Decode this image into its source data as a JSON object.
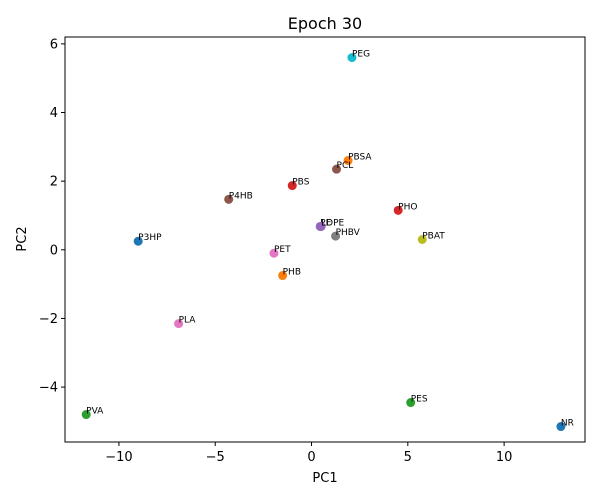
{
  "chart_data": {
    "type": "scatter",
    "title": "Epoch 30",
    "xlabel": "PC1",
    "ylabel": "PC2",
    "xlim": [
      -12.8,
      14.2
    ],
    "ylim": [
      -5.6,
      6.2
    ],
    "xticks": [
      -10,
      -5,
      0,
      5,
      10
    ],
    "yticks": [
      -4,
      -2,
      0,
      2,
      4,
      6
    ],
    "grid": false,
    "points": [
      {
        "label": "PEG",
        "x": 2.1,
        "y": 5.6,
        "color": "#17becf"
      },
      {
        "label": "PBSA",
        "x": 1.9,
        "y": 2.6,
        "color": "#ff7f0e"
      },
      {
        "label": "PCL",
        "x": 1.3,
        "y": 2.35,
        "color": "#8c564b"
      },
      {
        "label": "PBS",
        "x": -1.0,
        "y": 1.87,
        "color": "#d62728"
      },
      {
        "label": "P4HB",
        "x": -4.3,
        "y": 1.47,
        "color": "#8c564b"
      },
      {
        "label": "PHO",
        "x": 4.5,
        "y": 1.15,
        "color": "#d62728"
      },
      {
        "label": "PE",
        "x": 0.45,
        "y": 0.68,
        "color": "#9467bd"
      },
      {
        "label": "LDPE",
        "x": 0.5,
        "y": 0.68,
        "color": "#9467bd"
      },
      {
        "label": "PHBV",
        "x": 1.25,
        "y": 0.4,
        "color": "#7f7f7f"
      },
      {
        "label": "PBAT",
        "x": 5.75,
        "y": 0.3,
        "color": "#bcbd22"
      },
      {
        "label": "P3HP",
        "x": -9.0,
        "y": 0.25,
        "color": "#1f77b4"
      },
      {
        "label": "PET",
        "x": -1.95,
        "y": -0.1,
        "color": "#e377c2"
      },
      {
        "label": "PHB",
        "x": -1.5,
        "y": -0.75,
        "color": "#ff7f0e"
      },
      {
        "label": "PLA",
        "x": -6.9,
        "y": -2.15,
        "color": "#e377c2"
      },
      {
        "label": "PES",
        "x": 5.15,
        "y": -4.45,
        "color": "#2ca02c"
      },
      {
        "label": "PVA",
        "x": -11.7,
        "y": -4.8,
        "color": "#2ca02c"
      },
      {
        "label": "NR",
        "x": 12.95,
        "y": -5.15,
        "color": "#1f77b4"
      }
    ]
  }
}
